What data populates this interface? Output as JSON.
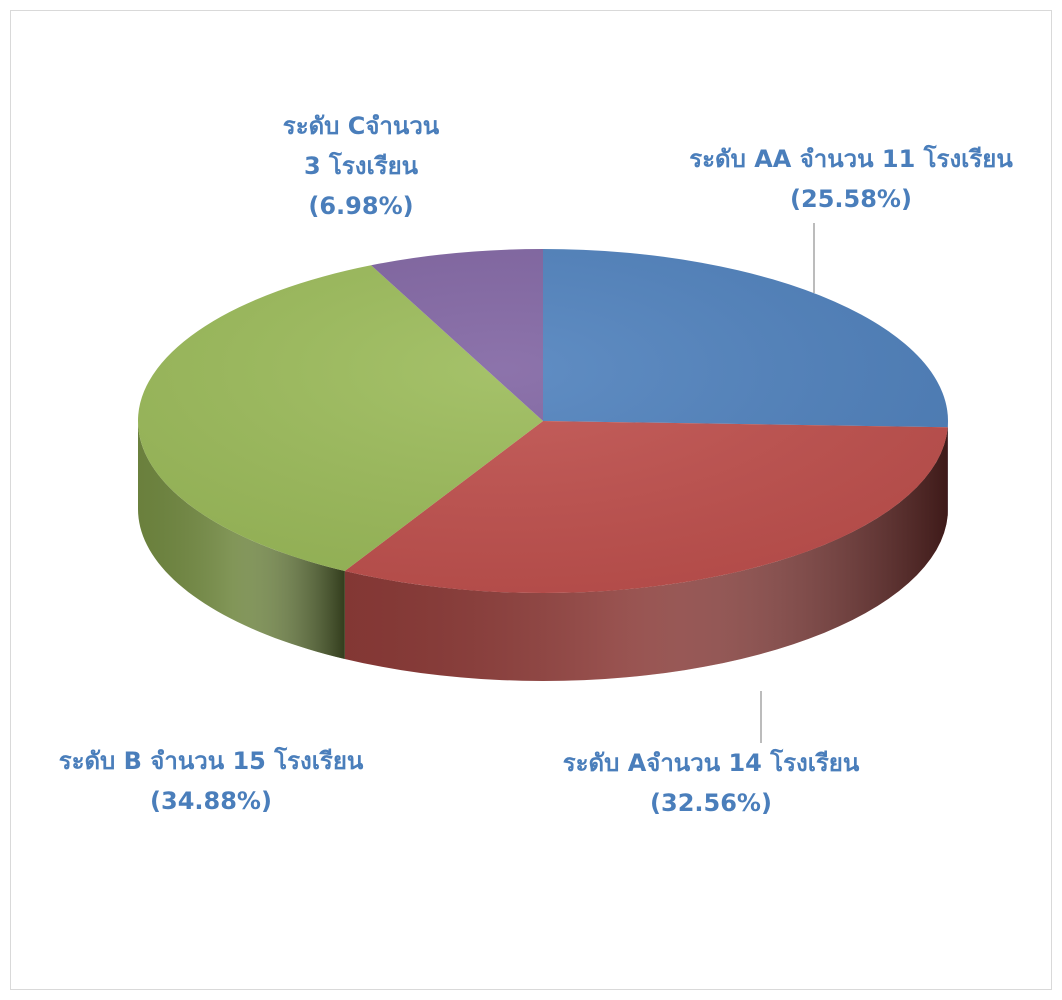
{
  "chart_data": {
    "type": "pie",
    "style": "3d",
    "title": "",
    "slices": [
      {
        "key": "AA",
        "label_line1": "ระดับ AA จำนวน 11 โรงเรียน",
        "label_line2": "(25.58%)",
        "value": 11,
        "percent": 25.58,
        "color": "#4f81bd"
      },
      {
        "key": "A",
        "label_line1": "ระดับ Aจำนวน 14 โรงเรียน",
        "label_line2": "(32.56%)",
        "value": 14,
        "percent": 32.56,
        "color": "#c0504d"
      },
      {
        "key": "B",
        "label_line1": "ระดับ B จำนวน 15 โรงเรียน",
        "label_line2": "(34.88%)",
        "value": 15,
        "percent": 34.88,
        "color": "#9bbb59"
      },
      {
        "key": "C",
        "label_line1": "ระดับ Cจำนวน",
        "label_line1b": "3 โรงเรียน",
        "label_line2": "(6.98%)",
        "value": 3,
        "percent": 6.98,
        "color": "#8064a2"
      }
    ],
    "label_color": "#4a7ebb",
    "leader_line_color": "#a6a6a6",
    "legend": "none"
  }
}
